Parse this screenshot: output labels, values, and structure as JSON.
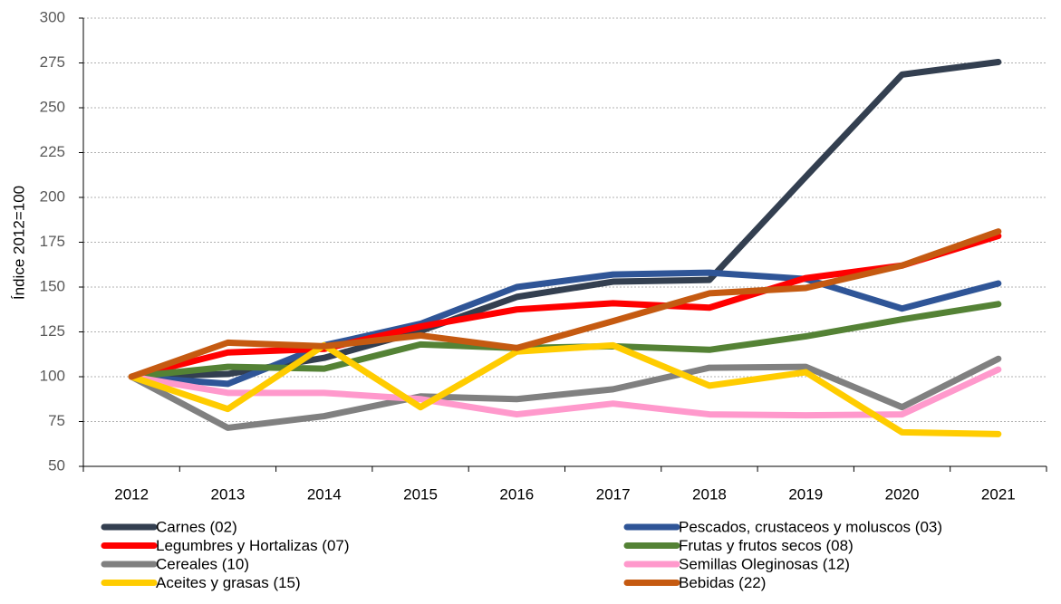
{
  "chart_data": {
    "type": "line",
    "y_label": "Índice 2012=100",
    "categories": [
      "2012",
      "2013",
      "2014",
      "2015",
      "2016",
      "2017",
      "2018",
      "2019",
      "2020",
      "2021"
    ],
    "ylim": [
      50,
      300
    ],
    "yticks": [
      50,
      75,
      100,
      125,
      150,
      175,
      200,
      225,
      250,
      275,
      300
    ],
    "grid": true,
    "legend": "bottom",
    "series": [
      {
        "name": "Carnes  (02)",
        "color": "#333f50",
        "values": [
          100,
          101.5,
          110.5,
          125.5,
          144.5,
          153,
          154,
          211.5,
          268.5,
          275.5
        ]
      },
      {
        "name": "Pescados, crustaceos y moluscos (03)",
        "color": "#2f5597",
        "values": [
          100,
          96,
          117.5,
          129.5,
          150,
          157,
          158,
          154.5,
          138,
          152
        ]
      },
      {
        "name": "Legumbres y Hortalizas (07)",
        "color": "#ff0000",
        "values": [
          100,
          113.5,
          115.5,
          128,
          137.5,
          141,
          138.5,
          155,
          162,
          178.5
        ]
      },
      {
        "name": "Frutas y frutos secos (08)",
        "color": "#548235",
        "values": [
          100,
          105.5,
          104.5,
          118,
          116,
          117,
          115,
          122.5,
          132,
          140.5
        ]
      },
      {
        "name": "Cereales (10)",
        "color": "#808080",
        "values": [
          100,
          71.5,
          78,
          89,
          87.5,
          93,
          105,
          105.5,
          83,
          110
        ]
      },
      {
        "name": "Semillas Oleginosas (12)",
        "color": "#ff99cc",
        "values": [
          100,
          91,
          91,
          87.5,
          79,
          85,
          79,
          78.5,
          79,
          104
        ]
      },
      {
        "name": "Aceites y grasas (15)",
        "color": "#ffcc00",
        "values": [
          100,
          82,
          117.5,
          83,
          114,
          117.5,
          95,
          102.5,
          69,
          68
        ]
      },
      {
        "name": "Bebidas (22)",
        "color": "#c55a11",
        "values": [
          100,
          119,
          117,
          123,
          116,
          131,
          146.5,
          149.5,
          162,
          181
        ]
      }
    ]
  }
}
